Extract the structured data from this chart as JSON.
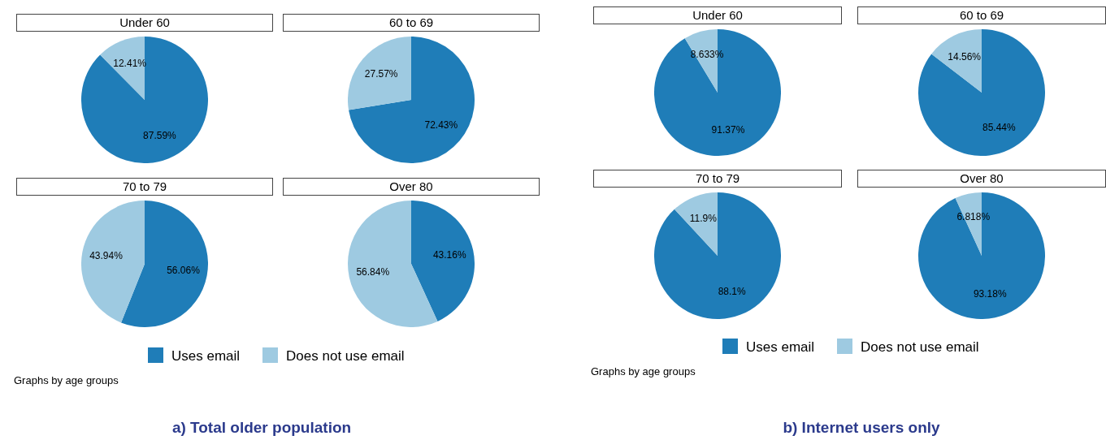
{
  "chart_data": [
    {
      "type": "pie",
      "title": "Under 60",
      "values": [
        87.59,
        12.41
      ],
      "colors": [
        "#1f7db8",
        "#9ecae1"
      ],
      "value_labels": [
        "87.59%",
        "12.41%"
      ]
    },
    {
      "type": "pie",
      "title": "60 to 69",
      "values": [
        72.43,
        27.57
      ],
      "colors": [
        "#1f7db8",
        "#9ecae1"
      ],
      "value_labels": [
        "72.43%",
        "27.57%"
      ]
    },
    {
      "type": "pie",
      "title": "70 to 79",
      "values": [
        56.06,
        43.94
      ],
      "colors": [
        "#1f7db8",
        "#9ecae1"
      ],
      "value_labels": [
        "56.06%",
        "43.94%"
      ]
    },
    {
      "type": "pie",
      "title": "Over 80",
      "categories": [
        "Uses email",
        "Does not use email"
      ],
      "values": [
        43.16,
        56.84
      ],
      "colors": [
        "#1f7db8",
        "#9ecae1"
      ],
      "value_labels": [
        "43.16%",
        "56.84%"
      ],
      "legend": "bottom",
      "annotations": [
        "Graphs by age groups",
        "a) Total older population"
      ]
    },
    {
      "type": "pie",
      "title": "Under 60",
      "values": [
        91.37,
        8.633
      ],
      "colors": [
        "#1f7db8",
        "#9ecae1"
      ],
      "value_labels": [
        "91.37%",
        "8.633%"
      ]
    },
    {
      "type": "pie",
      "title": "60 to 69",
      "values": [
        85.44,
        14.56
      ],
      "colors": [
        "#1f7db8",
        "#9ecae1"
      ],
      "value_labels": [
        "85.44%",
        "14.56%"
      ]
    },
    {
      "type": "pie",
      "title": "70 to 79",
      "values": [
        88.1,
        11.9
      ],
      "colors": [
        "#1f7db8",
        "#9ecae1"
      ],
      "value_labels": [
        "88.1%",
        "11.9%"
      ]
    },
    {
      "type": "pie",
      "title": "Over 80",
      "categories": [
        "Uses email",
        "Does not use email"
      ],
      "values": [
        93.18,
        6.818
      ],
      "colors": [
        "#1f7db8",
        "#9ecae1"
      ],
      "value_labels": [
        "93.18%",
        "6.818%"
      ],
      "legend": "bottom",
      "annotations": [
        "Graphs by age groups",
        "b) Internet users only"
      ]
    }
  ]
}
